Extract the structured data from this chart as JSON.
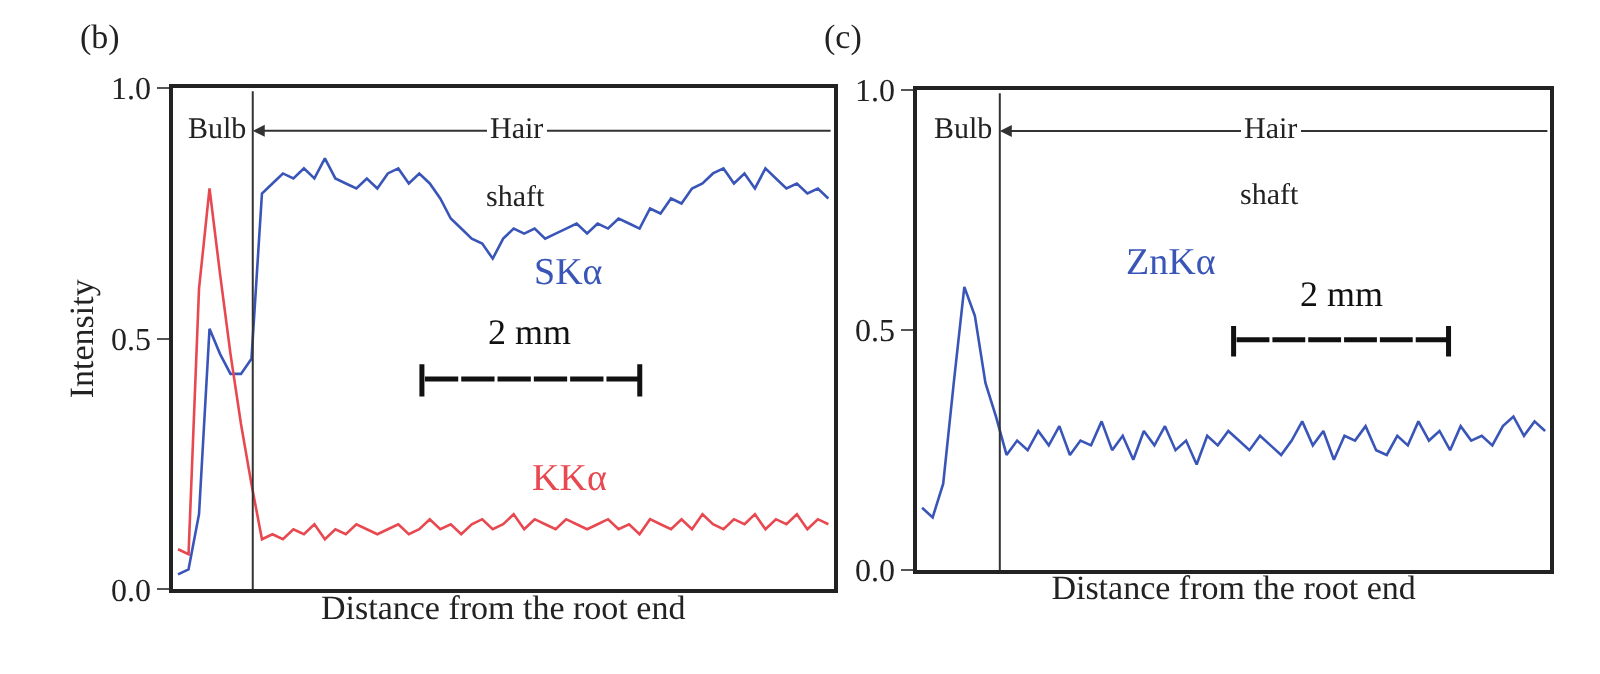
{
  "chart_data": [
    {
      "type": "line",
      "title": "(b)",
      "xlabel": "Distance from the root end",
      "ylabel": "Intensity",
      "categories": [
        null,
        null,
        null,
        null,
        null,
        null,
        null,
        null,
        null,
        null,
        null,
        null,
        null,
        null,
        null,
        null,
        null,
        null,
        null,
        null,
        null,
        null,
        null,
        null,
        null,
        null,
        null,
        null,
        null,
        null,
        null,
        null,
        null,
        null,
        null,
        null,
        null,
        null,
        null,
        null,
        null,
        null,
        null,
        null,
        null,
        null,
        null,
        null,
        null,
        null,
        null,
        null,
        null,
        null,
        null,
        null,
        null,
        null,
        null,
        null,
        null,
        null,
        null
      ],
      "series": [
        {
          "name": "SKα",
          "color": "#3a55b8",
          "values": [
            0.03,
            0.04,
            0.15,
            0.52,
            0.47,
            0.43,
            0.43,
            0.46,
            0.79,
            0.81,
            0.83,
            0.82,
            0.84,
            0.82,
            0.86,
            0.82,
            0.81,
            0.8,
            0.82,
            0.8,
            0.83,
            0.84,
            0.81,
            0.83,
            0.81,
            0.78,
            0.74,
            0.72,
            0.7,
            0.69,
            0.66,
            0.7,
            0.72,
            0.71,
            0.72,
            0.7,
            0.71,
            0.72,
            0.73,
            0.71,
            0.73,
            0.72,
            0.74,
            0.73,
            0.72,
            0.76,
            0.75,
            0.78,
            0.77,
            0.8,
            0.81,
            0.83,
            0.84,
            0.81,
            0.83,
            0.8,
            0.84,
            0.82,
            0.8,
            0.81,
            0.79,
            0.8,
            0.78
          ]
        },
        {
          "name": "KKα",
          "color": "#e8484f",
          "values": [
            0.08,
            0.07,
            0.6,
            0.8,
            0.63,
            0.47,
            0.33,
            0.21,
            0.1,
            0.11,
            0.1,
            0.12,
            0.11,
            0.13,
            0.1,
            0.12,
            0.11,
            0.13,
            0.12,
            0.11,
            0.12,
            0.13,
            0.11,
            0.12,
            0.14,
            0.12,
            0.13,
            0.11,
            0.13,
            0.14,
            0.12,
            0.13,
            0.15,
            0.12,
            0.14,
            0.13,
            0.12,
            0.14,
            0.13,
            0.12,
            0.13,
            0.14,
            0.12,
            0.13,
            0.11,
            0.14,
            0.13,
            0.12,
            0.14,
            0.12,
            0.15,
            0.13,
            0.12,
            0.14,
            0.13,
            0.15,
            0.12,
            0.14,
            0.13,
            0.15,
            0.12,
            0.14,
            0.13
          ]
        }
      ],
      "ylim": [
        0,
        1
      ],
      "yticks": [
        {
          "value": 0,
          "label": "0.0"
        },
        {
          "value": 0.5,
          "label": "0.5"
        },
        {
          "value": 1,
          "label": "1.0"
        }
      ],
      "tick_labels": "y",
      "marker": "none",
      "line_style": "solid",
      "annotations": [
        "Bulb",
        "Hair",
        "shaft",
        "2 mm"
      ]
    },
    {
      "type": "line",
      "title": "(c)",
      "xlabel": "Distance from the root end",
      "categories": [
        null,
        null,
        null,
        null,
        null,
        null,
        null,
        null,
        null,
        null,
        null,
        null,
        null,
        null,
        null,
        null,
        null,
        null,
        null,
        null,
        null,
        null,
        null,
        null,
        null,
        null,
        null,
        null,
        null,
        null,
        null,
        null,
        null,
        null,
        null,
        null,
        null,
        null,
        null,
        null,
        null,
        null,
        null,
        null,
        null,
        null,
        null,
        null,
        null,
        null,
        null,
        null,
        null,
        null,
        null,
        null,
        null,
        null,
        null,
        null
      ],
      "series": [
        {
          "name": "ZnKα",
          "color": "#3a55b8",
          "values": [
            0.13,
            0.11,
            0.18,
            0.39,
            0.59,
            0.53,
            0.39,
            0.32,
            0.24,
            0.27,
            0.25,
            0.29,
            0.26,
            0.3,
            0.24,
            0.27,
            0.26,
            0.31,
            0.25,
            0.28,
            0.23,
            0.29,
            0.26,
            0.3,
            0.25,
            0.27,
            0.22,
            0.28,
            0.26,
            0.29,
            0.27,
            0.25,
            0.28,
            0.26,
            0.24,
            0.27,
            0.31,
            0.26,
            0.29,
            0.23,
            0.28,
            0.27,
            0.3,
            0.25,
            0.24,
            0.28,
            0.26,
            0.31,
            0.27,
            0.29,
            0.25,
            0.3,
            0.27,
            0.28,
            0.26,
            0.3,
            0.32,
            0.28,
            0.31,
            0.29
          ]
        }
      ],
      "ylim": [
        0,
        1
      ],
      "yticks": [
        {
          "value": 0,
          "label": "0.0"
        },
        {
          "value": 0.5,
          "label": "0.5"
        },
        {
          "value": 1,
          "label": "1.0"
        }
      ],
      "tick_labels": "y",
      "marker": "none",
      "line_style": "solid",
      "annotations": [
        "Bulb",
        "Hair",
        "shaft",
        "2 mm"
      ]
    }
  ]
}
